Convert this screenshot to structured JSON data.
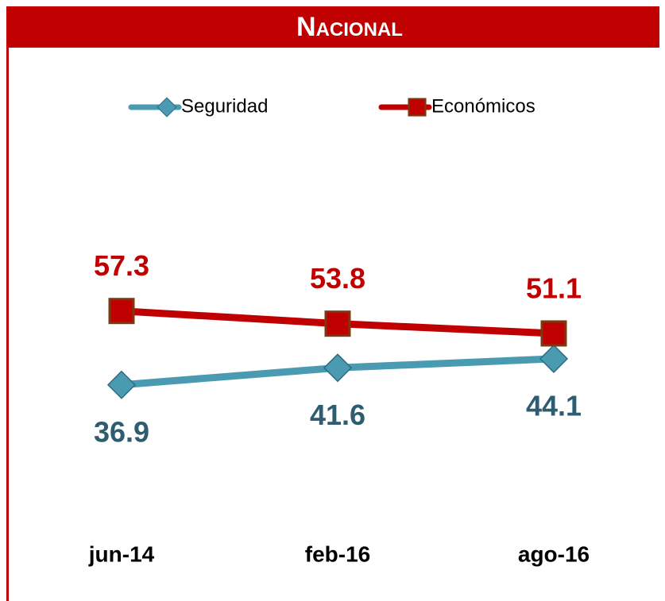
{
  "chart_data": {
    "type": "line",
    "title": "Nacional",
    "categories": [
      "jun-14",
      "feb-16",
      "ago-16"
    ],
    "series": [
      {
        "name": "Seguridad",
        "color": "#4a9bb2",
        "label_color": "#2e5d70",
        "values": [
          36.9,
          41.6,
          44.1
        ]
      },
      {
        "name": "Económicos",
        "color": "#c00000",
        "label_color": "#c00000",
        "values": [
          57.3,
          53.8,
          51.1
        ]
      }
    ],
    "ylim": [
      0,
      100
    ],
    "legend": "top"
  }
}
